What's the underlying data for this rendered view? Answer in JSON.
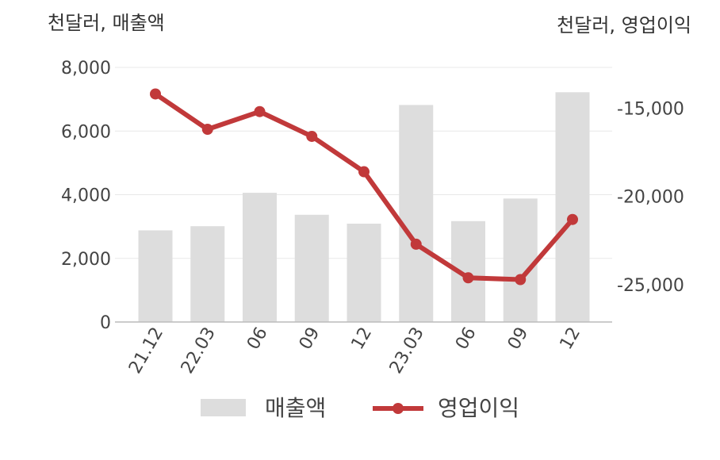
{
  "chart_data": {
    "type": "bar+line",
    "categories": [
      "21.12",
      "22.03",
      "06",
      "09",
      "12",
      "23.03",
      "06",
      "09",
      "12"
    ],
    "left_axis": {
      "unit_label": "천달러, 매출액",
      "ylim": [
        0,
        8000
      ],
      "ticks": [
        0,
        2000,
        4000,
        6000,
        8000
      ],
      "tick_labels": [
        "0",
        "2,000",
        "4,000",
        "6,000",
        "8,000"
      ]
    },
    "right_axis": {
      "unit_label": "천달러, 영업이익",
      "ylim": [
        -27100,
        -12700
      ],
      "ticks": [
        -15000,
        -20000,
        -25000
      ],
      "tick_labels": [
        "-15,000",
        "-20,000",
        "-25,000"
      ]
    },
    "series": [
      {
        "name": "매출액",
        "type": "bar",
        "axis": "left",
        "color": "#dddddd",
        "values": [
          2880,
          3010,
          4060,
          3370,
          3090,
          6820,
          3170,
          3880,
          7220
        ]
      },
      {
        "name": "영업이익",
        "type": "line",
        "axis": "right",
        "color": "#c1393a",
        "values": [
          -14200,
          -16200,
          -15200,
          -16600,
          -18600,
          -22700,
          -24600,
          -24700,
          -21300
        ]
      }
    ],
    "grid": true,
    "legend_position": "bottom"
  }
}
